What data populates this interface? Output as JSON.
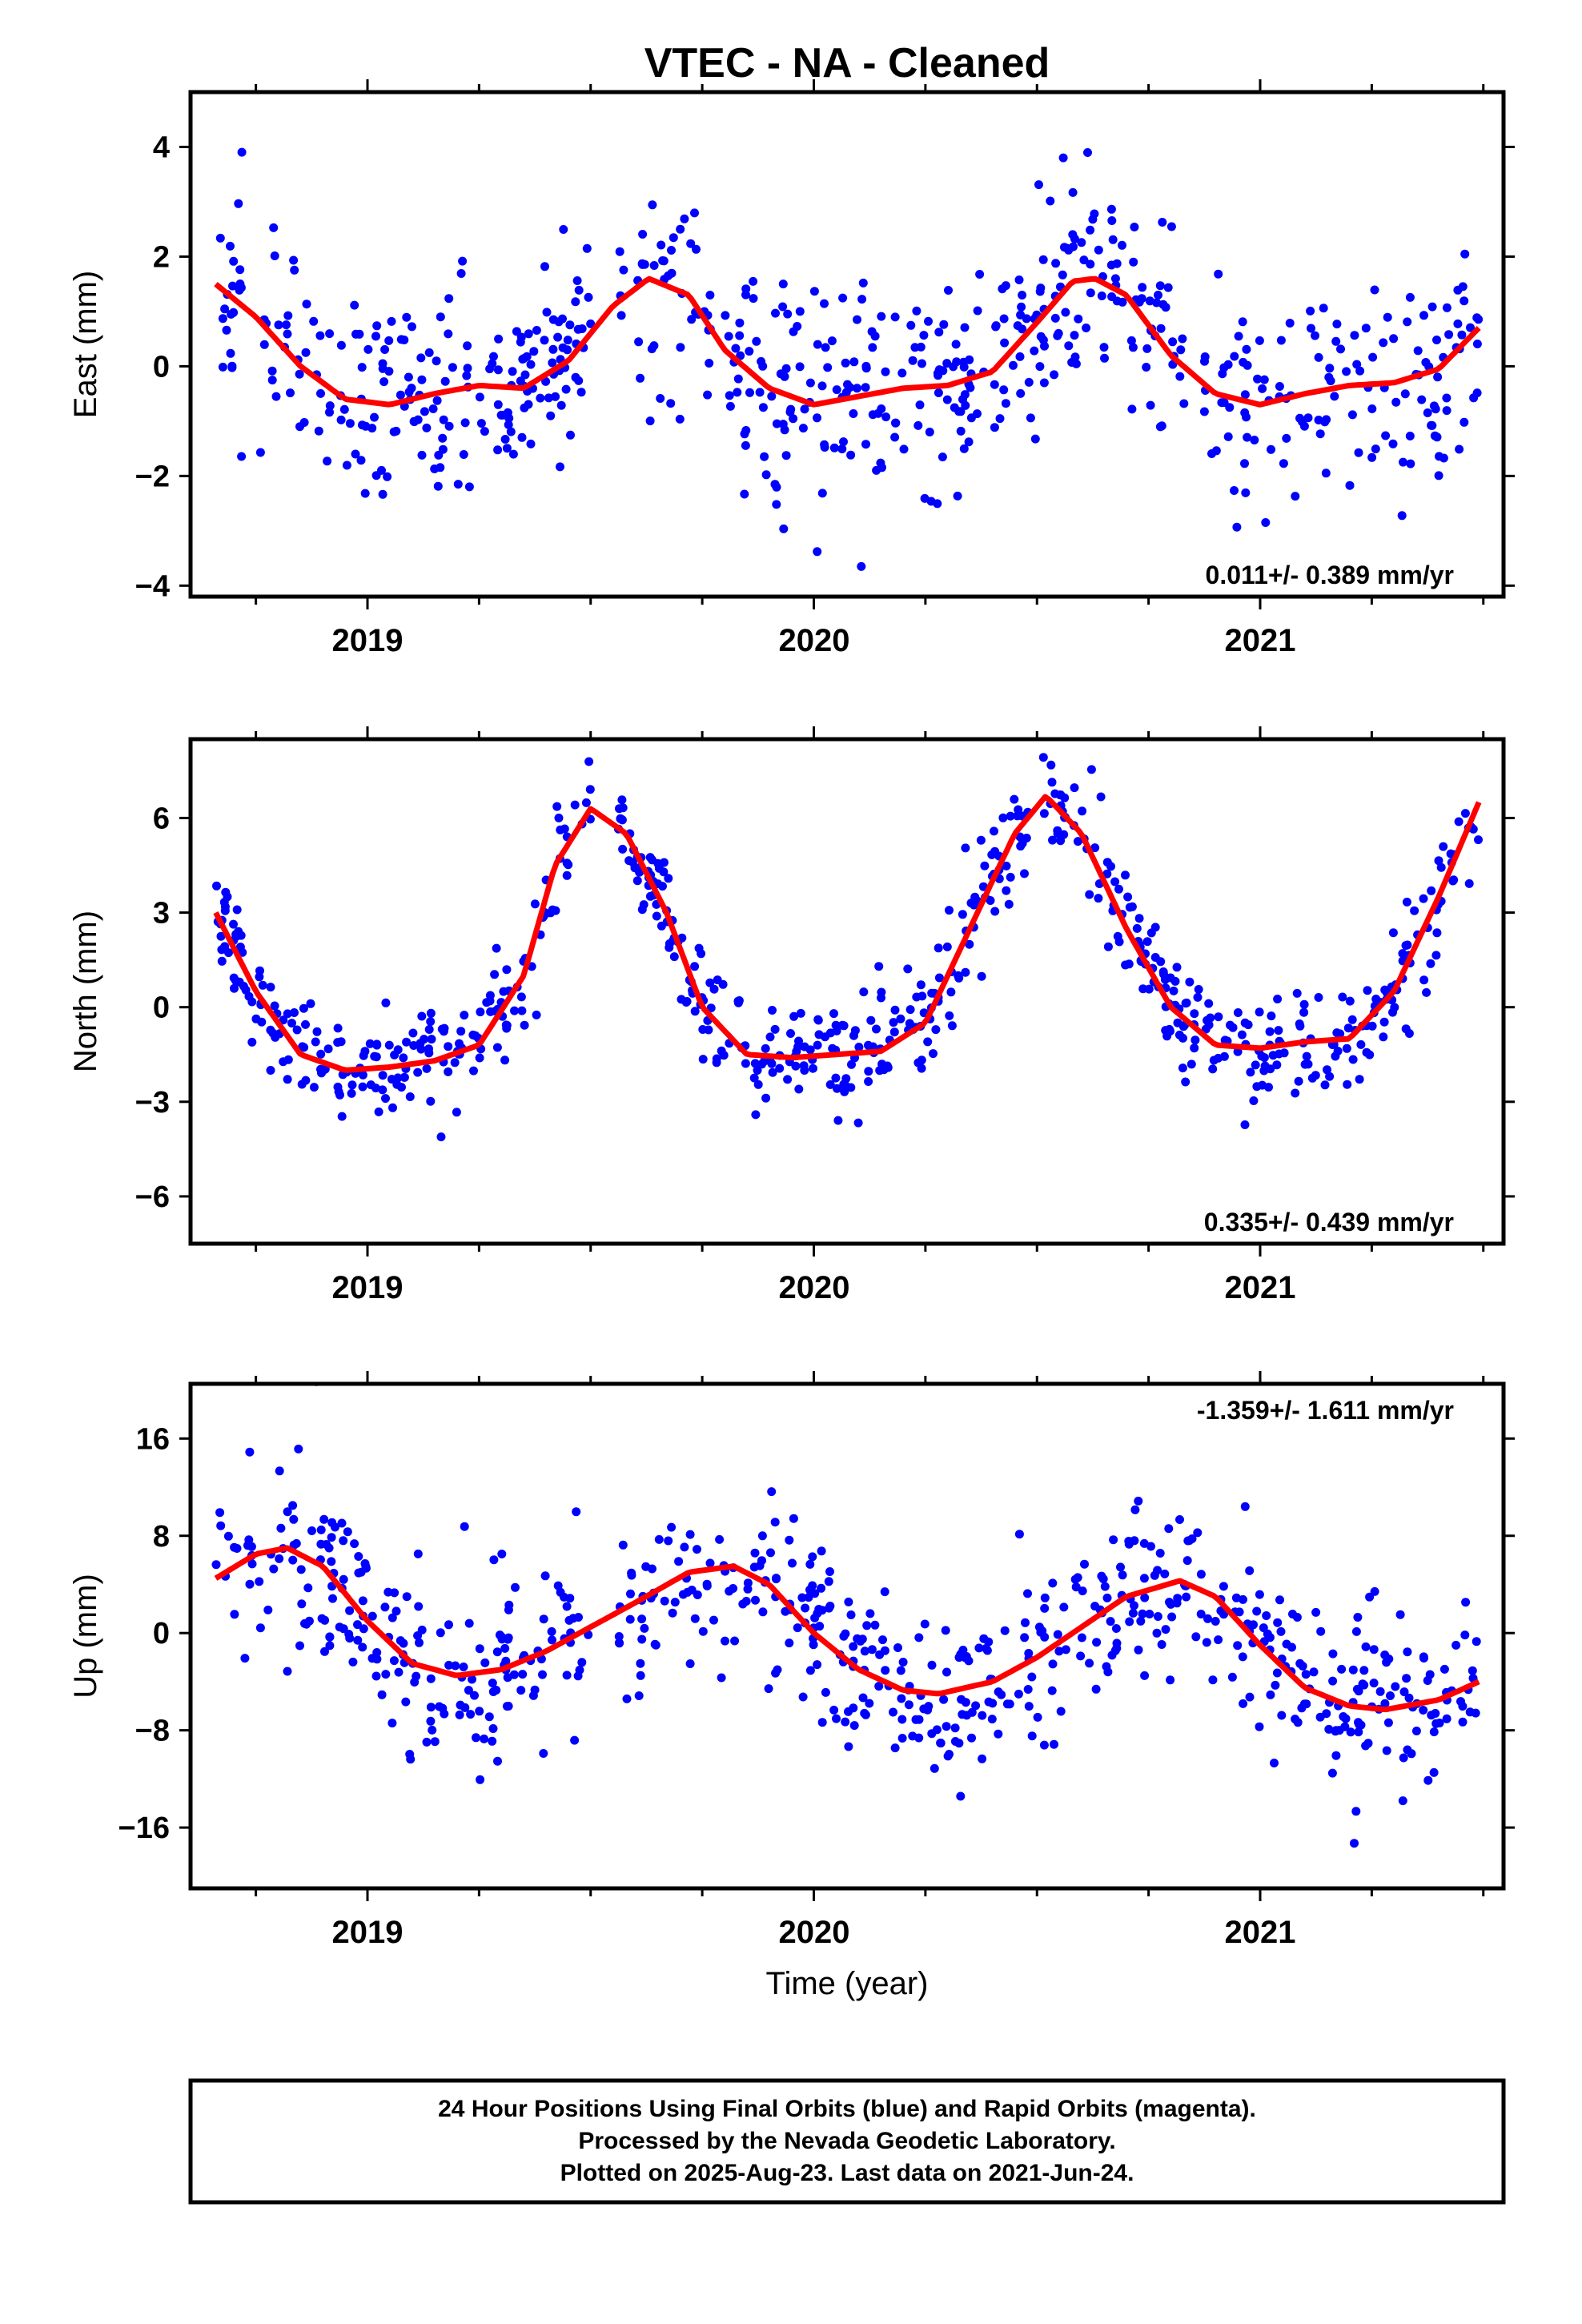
{
  "title": "VTEC  - NA - Cleaned",
  "xlabel": "Time (year)",
  "colors": {
    "points": "#0000ff",
    "fit": "#ff0000",
    "frame": "#000000"
  },
  "footer": {
    "lines": [
      "24 Hour Positions Using Final Orbits (blue) and Rapid Orbits (magenta).",
      "Processed by the Nevada Geodetic Laboratory.",
      "Plotted on 2025-Aug-23. Last data on 2021-Jun-24."
    ]
  },
  "chart_data": [
    {
      "type": "scatter",
      "ylabel": "East (mm)",
      "xlim": [
        2018.6,
        2021.55
      ],
      "ylim": [
        -4.2,
        5.0
      ],
      "x_ticks": [
        "2019",
        "2020",
        "2021"
      ],
      "y_ticks": [
        -4,
        -2,
        0,
        2,
        4
      ],
      "y_tick_labels": [
        "−4",
        "−2",
        "0",
        "2",
        "4"
      ],
      "rate_label": "0.011+/- 0.389 mm/yr",
      "rate_label_position": "bottom-right",
      "fit": {
        "x": [
          2018.66,
          2018.75,
          2018.85,
          2018.95,
          2019.05,
          2019.15,
          2019.25,
          2019.35,
          2019.45,
          2019.55,
          2019.63,
          2019.72,
          2019.8,
          2019.9,
          2020.0,
          2020.1,
          2020.2,
          2020.3,
          2020.4,
          2020.5,
          2020.58,
          2020.63,
          2020.7,
          2020.8,
          2020.9,
          2021.0,
          2021.1,
          2021.2,
          2021.3,
          2021.4,
          2021.49
        ],
        "y": [
          1.5,
          0.9,
          0.0,
          -0.6,
          -0.7,
          -0.5,
          -0.35,
          -0.4,
          0.1,
          1.1,
          1.6,
          1.3,
          0.3,
          -0.4,
          -0.7,
          -0.55,
          -0.4,
          -0.35,
          -0.1,
          0.8,
          1.55,
          1.6,
          1.3,
          0.2,
          -0.5,
          -0.7,
          -0.5,
          -0.35,
          -0.3,
          -0.05,
          0.7
        ]
      },
      "points": {
        "mean": [
          1.5,
          0.9,
          0.0,
          -0.6,
          -0.7,
          -0.5,
          -0.35,
          -0.4,
          0.1,
          1.1,
          1.6,
          1.3,
          0.3,
          -0.4,
          -0.7,
          -0.55,
          -0.4,
          -0.35,
          -0.1,
          0.8,
          1.55,
          1.6,
          1.3,
          0.2,
          -0.5,
          -0.7,
          -0.5,
          -0.35,
          -0.3,
          -0.05,
          0.7
        ],
        "scatter_sd": 1.0,
        "count": 700
      }
    },
    {
      "type": "scatter",
      "ylabel": "North (mm)",
      "xlim": [
        2018.6,
        2021.55
      ],
      "ylim": [
        -7.5,
        8.5
      ],
      "x_ticks": [
        "2019",
        "2020",
        "2021"
      ],
      "y_ticks": [
        -6,
        -3,
        0,
        3,
        6
      ],
      "y_tick_labels": [
        "−6",
        "−3",
        "0",
        "3",
        "6"
      ],
      "rate_label": "0.335+/- 0.439 mm/yr",
      "rate_label_position": "bottom-right",
      "fit": {
        "x": [
          2018.66,
          2018.75,
          2018.85,
          2018.95,
          2019.05,
          2019.15,
          2019.25,
          2019.35,
          2019.42,
          2019.5,
          2019.58,
          2019.67,
          2019.75,
          2019.85,
          2019.95,
          2020.05,
          2020.15,
          2020.25,
          2020.35,
          2020.45,
          2020.52,
          2020.6,
          2020.7,
          2020.8,
          2020.9,
          2021.0,
          2021.1,
          2021.2,
          2021.3,
          2021.4,
          2021.49
        ],
        "y": [
          3.0,
          0.5,
          -1.5,
          -2.0,
          -1.9,
          -1.7,
          -1.2,
          1.0,
          4.5,
          6.3,
          5.5,
          3.0,
          0.0,
          -1.5,
          -1.6,
          -1.5,
          -1.4,
          -0.5,
          2.5,
          5.5,
          6.7,
          5.5,
          2.5,
          0.0,
          -1.2,
          -1.3,
          -1.1,
          -1.0,
          0.5,
          3.5,
          6.5
        ]
      },
      "points": {
        "mean": [
          3.0,
          0.5,
          -1.5,
          -2.0,
          -1.9,
          -1.7,
          -1.2,
          1.0,
          4.5,
          6.3,
          5.5,
          3.0,
          0.0,
          -1.5,
          -1.6,
          -1.5,
          -1.4,
          -0.5,
          2.5,
          5.5,
          6.7,
          5.5,
          2.5,
          0.0,
          -1.2,
          -1.3,
          -1.1,
          -1.0,
          0.5,
          3.5,
          6.5
        ],
        "scatter_sd": 0.9,
        "count": 700
      }
    },
    {
      "type": "scatter",
      "ylabel": "Up (mm)",
      "xlim": [
        2018.6,
        2021.55
      ],
      "ylim": [
        -21.0,
        20.5
      ],
      "x_ticks": [
        "2019",
        "2020",
        "2021"
      ],
      "y_ticks": [
        -16,
        -8,
        0,
        8,
        16
      ],
      "y_tick_labels": [
        "−16",
        "−8",
        "0",
        "8",
        "16"
      ],
      "rate_label": "-1.359+/- 1.611 mm/yr",
      "rate_label_position": "top-right",
      "fit": {
        "x": [
          2018.66,
          2018.75,
          2018.82,
          2018.9,
          2019.0,
          2019.1,
          2019.2,
          2019.3,
          2019.4,
          2019.5,
          2019.6,
          2019.72,
          2019.82,
          2019.9,
          2020.0,
          2020.1,
          2020.2,
          2020.28,
          2020.4,
          2020.5,
          2020.6,
          2020.7,
          2020.82,
          2020.9,
          2021.0,
          2021.1,
          2021.2,
          2021.28,
          2021.4,
          2021.49
        ],
        "y": [
          4.5,
          6.5,
          7.0,
          5.5,
          1.0,
          -2.5,
          -3.5,
          -3.0,
          -1.5,
          0.5,
          2.5,
          5.0,
          5.5,
          4.0,
          0.0,
          -3.0,
          -4.7,
          -5.0,
          -4.0,
          -2.0,
          0.5,
          3.0,
          4.3,
          3.0,
          -1.0,
          -4.5,
          -6.0,
          -6.3,
          -5.5,
          -4.0
        ]
      },
      "points": {
        "mean": [
          4.5,
          6.5,
          7.0,
          5.5,
          1.0,
          -2.5,
          -3.5,
          -3.0,
          -1.5,
          0.5,
          2.5,
          5.0,
          5.5,
          4.0,
          0.0,
          -3.0,
          -4.7,
          -5.0,
          -4.0,
          -2.0,
          0.5,
          3.0,
          4.3,
          3.0,
          -1.0,
          -4.5,
          -6.0,
          -6.3,
          -5.5,
          -4.0
        ],
        "scatter_sd": 3.8,
        "count": 700
      }
    }
  ]
}
